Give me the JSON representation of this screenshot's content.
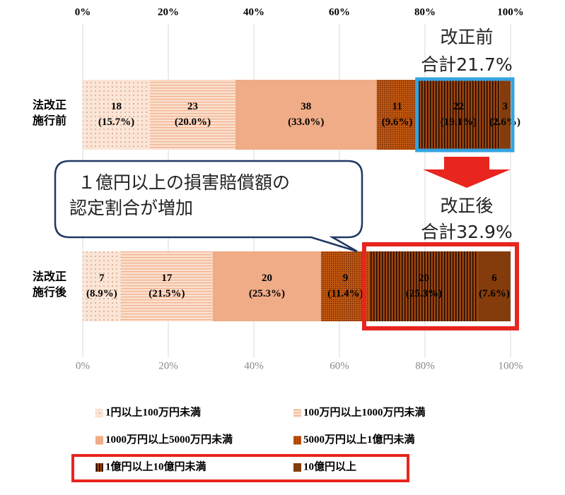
{
  "chart_data": {
    "type": "stacked_bar_horizontal",
    "categories": [
      "法改正施行前",
      "法改正施行後"
    ],
    "xlim": [
      0,
      100
    ],
    "xticks": [
      {
        "value": 0,
        "label": "0%"
      },
      {
        "value": 20,
        "label": "20%"
      },
      {
        "value": 40,
        "label": "40%"
      },
      {
        "value": 60,
        "label": "60%"
      },
      {
        "value": 80,
        "label": "80%"
      },
      {
        "value": 100,
        "label": "100%"
      }
    ],
    "grid": true,
    "series": [
      {
        "name": "1円以上100万円未満",
        "color": "#fbe5d6",
        "values": [
          15.7,
          8.9
        ],
        "counts": [
          18,
          7
        ],
        "value_labels": [
          "(15.7%)",
          "(8.9%)"
        ]
      },
      {
        "name": "100万円以上1000万円未満",
        "color": "#fbe0cf",
        "values": [
          20.0,
          21.5
        ],
        "counts": [
          23,
          17
        ],
        "value_labels": [
          "(20.0%)",
          "(21.5%)"
        ]
      },
      {
        "name": "1000万円以上5000万円未満",
        "color": "#efac87",
        "values": [
          33.0,
          25.3
        ],
        "counts": [
          38,
          20
        ],
        "value_labels": [
          "(33.0%)",
          "(25.3%)"
        ]
      },
      {
        "name": "5000万円以上1億円未満",
        "color": "#c55a11",
        "values": [
          9.6,
          11.4
        ],
        "counts": [
          11,
          9
        ],
        "value_labels": [
          "(9.6%)",
          "(11.4%)"
        ]
      },
      {
        "name": "1億円以上10億円未満",
        "color": "#a0450f",
        "values": [
          19.1,
          25.3
        ],
        "counts": [
          22,
          20
        ],
        "value_labels": [
          "(19.1%)",
          "(25.3%)"
        ]
      },
      {
        "name": "10億円以上",
        "color": "#843c0c",
        "values": [
          2.6,
          7.6
        ],
        "counts": [
          3,
          6
        ],
        "value_labels": [
          "(2.6%)",
          "(7.6%)"
        ]
      }
    ],
    "annotations": {
      "before_title": "改正前",
      "before_total": "合計21.7%",
      "after_title": "改正後",
      "after_total": "合計32.9%",
      "callout": [
        "１億円以上の損害賠償額の",
        "認定割合が増加"
      ]
    }
  }
}
